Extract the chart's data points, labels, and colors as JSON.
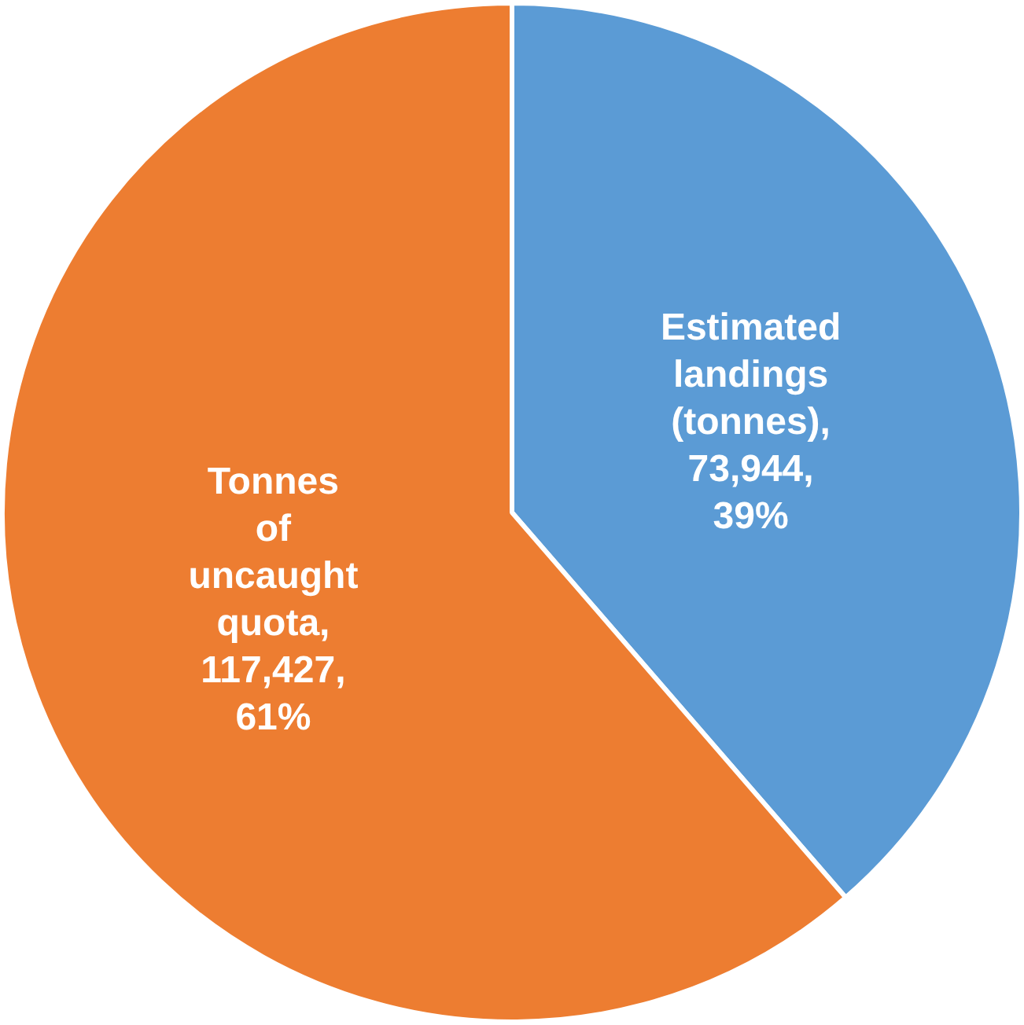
{
  "chart_data": {
    "type": "pie",
    "categories": [
      "Estimated landings (tonnes)",
      "Tonnes of uncaught quota"
    ],
    "values": [
      73944,
      117427
    ],
    "colors": [
      "#5b9bd5",
      "#ed7d31"
    ],
    "value_labels": [
      ", 73,944, 39%",
      ", 117,427, 61%"
    ],
    "legend": false
  }
}
